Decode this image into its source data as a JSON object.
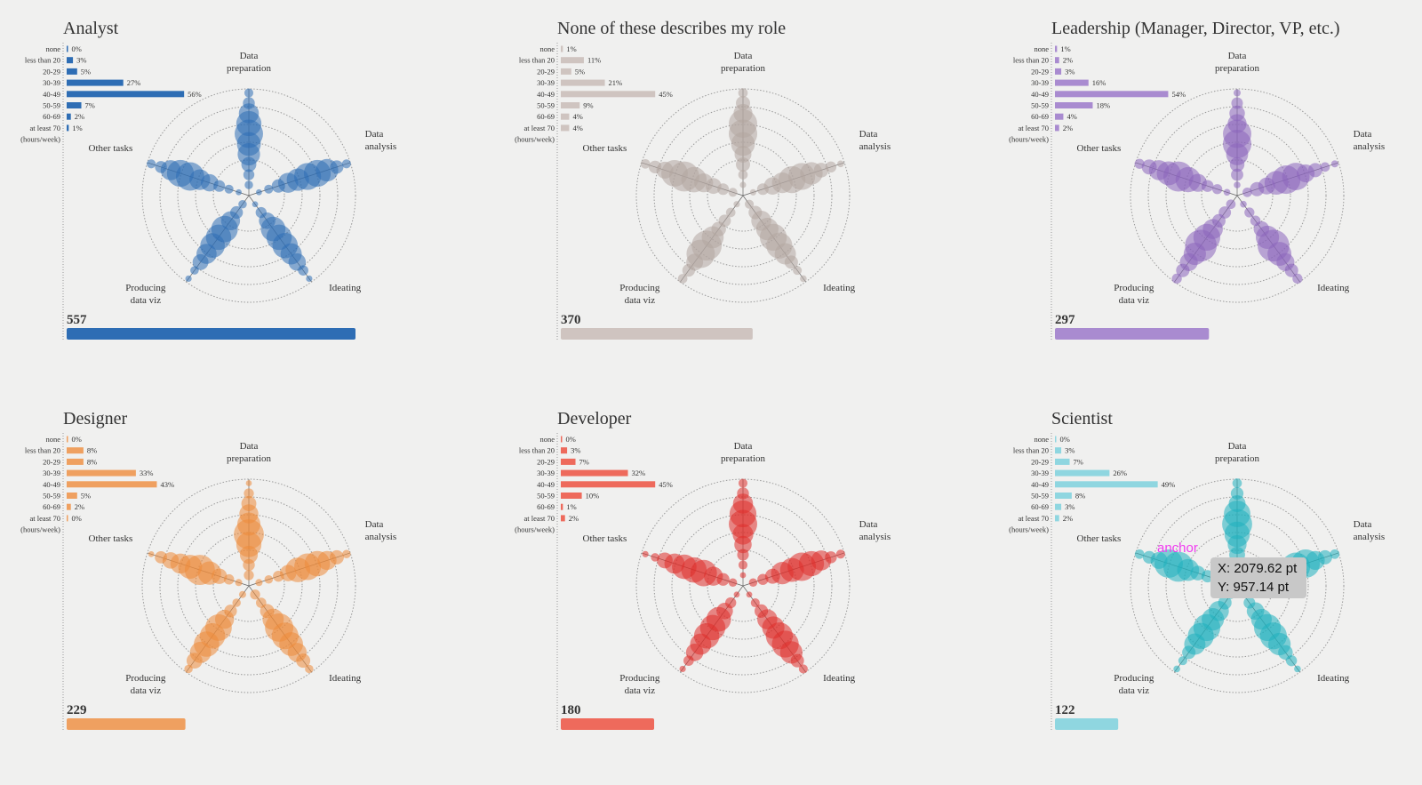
{
  "chart_data": {
    "type": "radar-bubble small multiples",
    "hours_label": "(hours/week)",
    "hour_categories": [
      "none",
      "less than 20",
      "20-29",
      "30-39",
      "40-49",
      "50-59",
      "60-69",
      "at least 70"
    ],
    "axes": [
      "Data preparation",
      "Data analysis",
      "Ideating",
      "Producing data viz",
      "Other tasks"
    ],
    "count_max": 557,
    "panels": [
      {
        "title": "Analyst",
        "count": 557,
        "color": "#2e6db4",
        "bar_color": "#2e6db4",
        "hours": [
          0,
          3,
          5,
          27,
          56,
          7,
          2,
          1
        ]
      },
      {
        "title": "None of these describes my role",
        "count": 370,
        "color": "#b3a5a0",
        "bar_color": "#cfc4c0",
        "hours": [
          1,
          11,
          5,
          21,
          45,
          9,
          4,
          4
        ]
      },
      {
        "title": "Leadership (Manager, Director, VP, etc.)",
        "count": 297,
        "color": "#8a64bb",
        "bar_color": "#a98bd0",
        "hours": [
          1,
          2,
          3,
          16,
          54,
          18,
          4,
          2
        ]
      },
      {
        "title": "Designer",
        "count": 229,
        "color": "#ec8a3a",
        "bar_color": "#efa060",
        "hours": [
          0,
          8,
          8,
          33,
          43,
          5,
          2,
          0
        ]
      },
      {
        "title": "Developer",
        "count": 180,
        "color": "#de2e2a",
        "bar_color": "#ee6a5c",
        "hours": [
          0,
          3,
          7,
          32,
          45,
          10,
          1,
          2
        ]
      },
      {
        "title": "Scientist",
        "count": 122,
        "color": "#1fb0bd",
        "bar_color": "#8fd6e0",
        "hours": [
          0,
          3,
          7,
          26,
          49,
          8,
          3,
          2
        ]
      }
    ]
  },
  "overlay": {
    "anchor_label": "anchor",
    "x_readout": "X: 2079.62 pt",
    "y_readout": "Y: 957.14 pt"
  }
}
